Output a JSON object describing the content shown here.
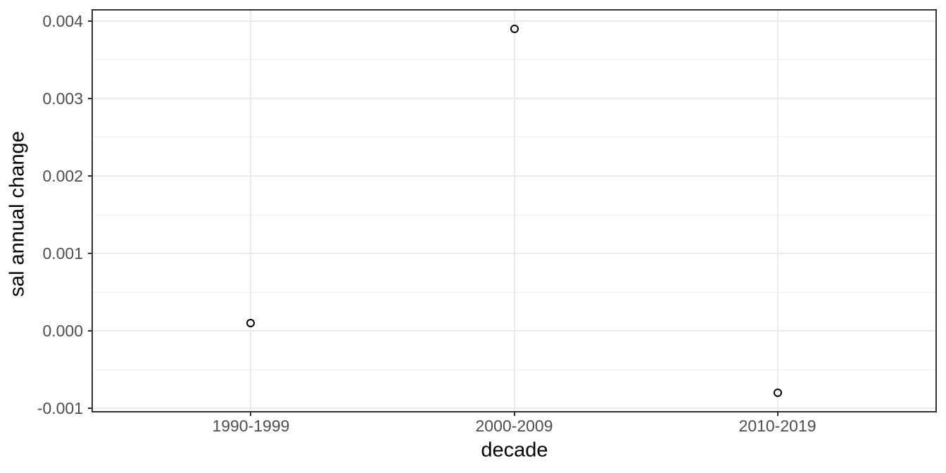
{
  "chart_data": {
    "type": "scatter",
    "title": "",
    "xlabel": "decade",
    "ylabel": "sal annual change",
    "categories": [
      "1990-1999",
      "2000-2009",
      "2010-2019"
    ],
    "values": [
      0.0001,
      0.0039,
      -0.0008
    ],
    "y_ticks": [
      -0.001,
      0,
      0.001,
      0.002,
      0.003,
      0.004
    ],
    "y_tick_labels": [
      "-0.001",
      "0.000",
      "0.001",
      "0.002",
      "0.003",
      "0.004"
    ],
    "ylim": [
      -0.001035,
      0.004135
    ],
    "grid": "horizontal major+minor, vertical major at categories",
    "legend": "none",
    "marker": "open-circle",
    "colors": {
      "background": "#FFFFFF",
      "panel_border": "#333333",
      "grid_major": "#EBEBEB",
      "grid_minor": "#F0F0F0",
      "tick_mark": "#333333",
      "tick_label_text": "#4D4D4D",
      "axis_title_text": "#000000",
      "point_stroke": "#000000"
    }
  }
}
